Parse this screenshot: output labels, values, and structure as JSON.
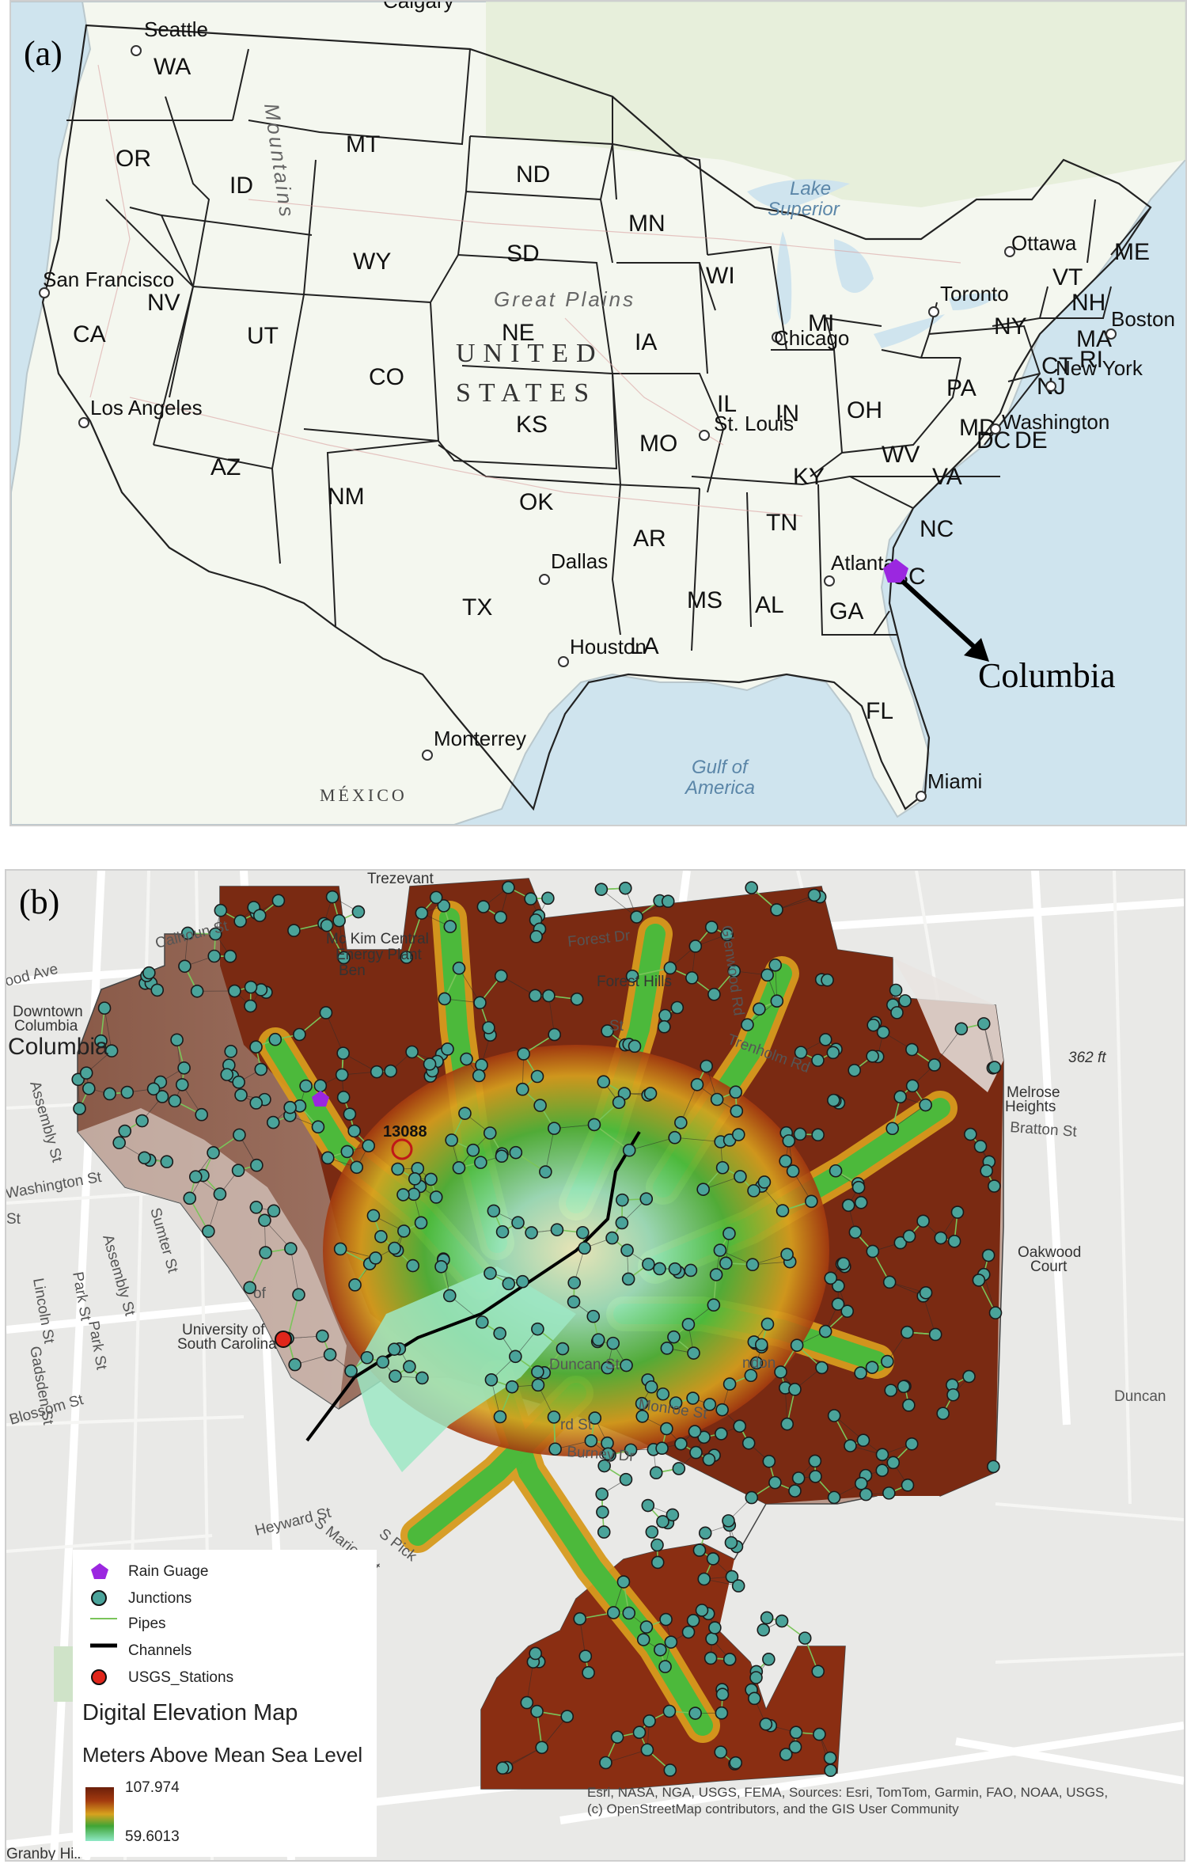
{
  "panel_a": {
    "label": "(a)",
    "country_line1": "UNITED",
    "country_line2": "STATES",
    "mexico": "MÉXICO",
    "great_plains": "Great Plains",
    "mountains": "Mountains",
    "calgary": "Calgary",
    "lake_superior_1": "Lake",
    "lake_superior_2": "Superior",
    "gulf_1": "Gulf of",
    "gulf_2": "America",
    "states": {
      "WA": "WA",
      "OR": "OR",
      "CA": "CA",
      "NV": "NV",
      "ID": "ID",
      "MT": "MT",
      "WY": "WY",
      "UT": "UT",
      "AZ": "AZ",
      "CO": "CO",
      "NM": "NM",
      "ND": "ND",
      "SD": "SD",
      "NE": "NE",
      "KS": "KS",
      "OK": "OK",
      "TX": "TX",
      "MN": "MN",
      "IA": "IA",
      "MO": "MO",
      "AR": "AR",
      "LA": "LA",
      "WI": "WI",
      "IL": "IL",
      "MI": "MI",
      "IN": "IN",
      "OH": "OH",
      "KY": "KY",
      "TN": "TN",
      "MS": "MS",
      "AL": "AL",
      "GA": "GA",
      "FL": "FL",
      "SC": "SC",
      "NC": "NC",
      "VA": "VA",
      "WV": "WV",
      "PA": "PA",
      "NY": "NY",
      "VT": "VT",
      "NH": "NH",
      "ME": "ME",
      "MA": "MA",
      "CT": "CT",
      "RI": "RI",
      "NJ": "NJ",
      "DE": "DE",
      "MD": "MD",
      "DC": "DC"
    },
    "cities": {
      "seattle": "Seattle",
      "sf": "San Francisco",
      "la": "Los Angeles",
      "dallas": "Dallas",
      "houston": "Houston",
      "monterrey": "Monterrey",
      "stlouis": "St. Louis",
      "chicago": "Chicago",
      "atlanta": "Atlanta",
      "miami": "Miami",
      "ottawa": "Ottawa",
      "toronto": "Toronto",
      "boston": "Boston",
      "newyork": "New York",
      "washington": "Washington"
    },
    "callout": "Columbia",
    "rain_gauge_color": "#9b27e0"
  },
  "panel_b": {
    "label": "(b)",
    "places": {
      "trezevant": "Trezevant",
      "mckim_1": "Mc Kim Central",
      "mckim_2": "Energy Plant",
      "mckim_3": "Ben",
      "forest_hills": "Forest Hills",
      "downtown_1": "Downtown",
      "downtown_2": "Columbia",
      "columbia": "Columbia",
      "melrose_1": "Melrose",
      "melrose_2": "Heights",
      "oakwood_1": "Oakwood",
      "oakwood_2": "Court",
      "usc_1": "University of",
      "usc_2": "South Carolina",
      "elev": "362 ft",
      "station_id": "13088",
      "granby": "Granby Hill"
    },
    "streets": {
      "calhoun": "Calhoun St",
      "forest_dr": "Forest Dr",
      "glenwood": "Glenwood Rd",
      "trenholm": "Trenholm Rd",
      "bratton": "Bratton St",
      "assembly1": "Assembly St",
      "assembly2": "Assembly St",
      "washington": "Washington St",
      "sumter": "Sumter St",
      "lincoln": "Lincoln St",
      "park1": "Park St",
      "park2": "Park St",
      "gadsden": "Gadsden St",
      "blossom": "Blossom St",
      "duncan1": "Duncan St",
      "duncan2": "Duncan",
      "monroe": "Monroe St",
      "burney": "Burney Dr",
      "heyward": "Heyward St",
      "marion": "S Marion St",
      "pickens": "S Pick",
      "rd_st": "rd St",
      "ndon": "ndon",
      "ood_ave": "ood Ave",
      "st_frag": "St",
      "st_frag2": "St",
      "of_frag": "of"
    },
    "legend": {
      "rain_gauge": "Rain Guage",
      "junctions": "Junctions",
      "pipes": "Pipes",
      "channels": "Channels",
      "usgs": "USGS_Stations",
      "dem_title": "Digital Elevation Map",
      "dem_sub": "Meters Above Mean Sea Level",
      "max": "107.974",
      "min": "59.6013"
    },
    "attribution_line1": "Esri, NASA, NGA, USGS, FEMA, Sources: Esri, TomTom, Garmin, FAO, NOAA, USGS,",
    "attribution_line2": "(c) OpenStreetMap contributors, and the GIS User Community",
    "colors": {
      "junction": "#4aa39a",
      "rain_gauge": "#9b27e0",
      "usgs": "#e0261b",
      "pipes": "#7ac45a",
      "channels": "#000000",
      "dem_high": "#6b1f0a",
      "dem_mid": "#d8a21e",
      "dem_low": "#8fe8c6"
    }
  }
}
